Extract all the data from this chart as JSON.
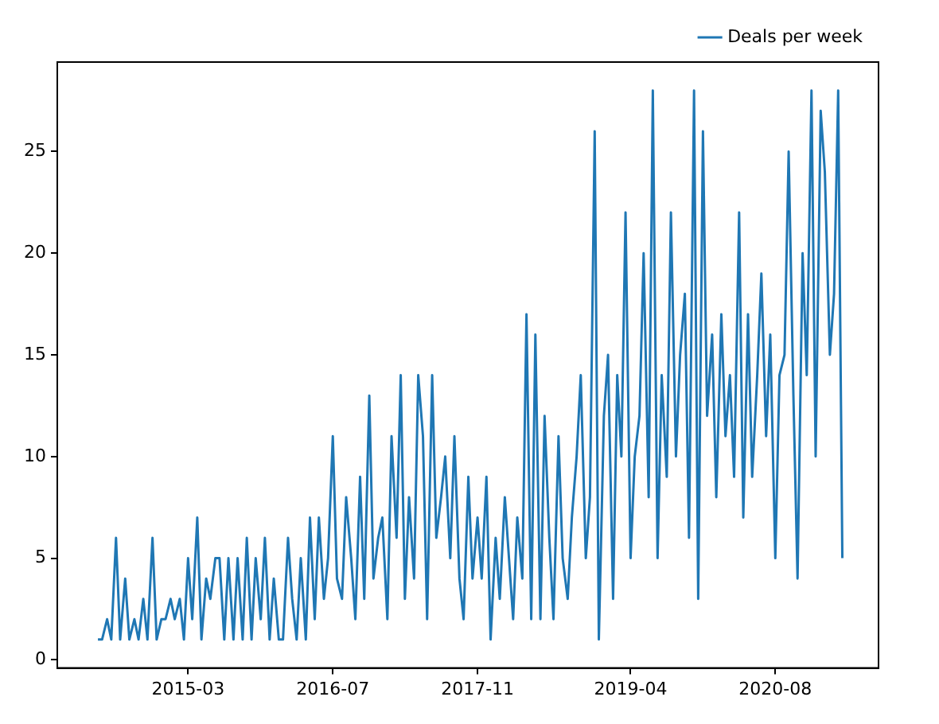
{
  "chart_data": {
    "type": "line",
    "x": [
      "2014-05-01",
      "2014-05-15",
      "2014-06-01",
      "2014-06-15",
      "2014-07-01",
      "2014-07-15",
      "2014-08-01",
      "2014-08-15",
      "2014-09-01",
      "2014-09-15",
      "2014-10-01",
      "2014-10-15",
      "2014-11-01",
      "2014-11-15",
      "2014-12-01",
      "2014-12-15",
      "2015-01-01",
      "2015-01-15",
      "2015-02-01",
      "2015-02-15",
      "2015-03-01",
      "2015-03-15",
      "2015-04-01",
      "2015-04-15",
      "2015-05-01",
      "2015-05-15",
      "2015-06-01",
      "2015-06-15",
      "2015-07-01",
      "2015-07-15",
      "2015-08-01",
      "2015-08-15",
      "2015-09-01",
      "2015-09-15",
      "2015-10-01",
      "2015-10-15",
      "2015-11-01",
      "2015-11-15",
      "2015-12-01",
      "2015-12-15",
      "2016-01-01",
      "2016-01-15",
      "2016-02-01",
      "2016-02-15",
      "2016-03-01",
      "2016-03-15",
      "2016-04-01",
      "2016-04-15",
      "2016-05-01",
      "2016-05-15",
      "2016-06-01",
      "2016-06-15",
      "2016-07-01",
      "2016-07-15",
      "2016-08-01",
      "2016-08-15",
      "2016-09-01",
      "2016-09-15",
      "2016-10-01",
      "2016-10-15",
      "2016-11-01",
      "2016-11-15",
      "2016-12-01",
      "2016-12-15",
      "2017-01-01",
      "2017-01-15",
      "2017-02-01",
      "2017-02-15",
      "2017-03-01",
      "2017-03-15",
      "2017-04-01",
      "2017-04-15",
      "2017-05-01",
      "2017-05-15",
      "2017-06-01",
      "2017-06-15",
      "2017-07-01",
      "2017-07-15",
      "2017-08-01",
      "2017-08-15",
      "2017-09-01",
      "2017-09-15",
      "2017-10-01",
      "2017-10-15",
      "2017-11-01",
      "2017-11-15",
      "2017-12-01",
      "2017-12-15",
      "2018-01-01",
      "2018-01-15",
      "2018-02-01",
      "2018-02-15",
      "2018-03-01",
      "2018-03-15",
      "2018-04-01",
      "2018-04-15",
      "2018-05-01",
      "2018-05-15",
      "2018-06-01",
      "2018-06-15",
      "2018-07-01",
      "2018-07-15",
      "2018-08-01",
      "2018-08-15",
      "2018-09-01",
      "2018-09-15",
      "2018-10-01",
      "2018-10-15",
      "2018-11-01",
      "2018-11-15",
      "2018-12-01",
      "2018-12-15",
      "2019-01-01",
      "2019-01-15",
      "2019-02-01",
      "2019-02-15",
      "2019-03-01",
      "2019-03-15",
      "2019-04-01",
      "2019-04-15",
      "2019-05-01",
      "2019-05-15",
      "2019-06-01",
      "2019-06-15",
      "2019-07-01",
      "2019-07-15",
      "2019-08-01",
      "2019-08-15",
      "2019-09-01",
      "2019-09-15",
      "2019-10-01",
      "2019-10-15",
      "2019-11-01",
      "2019-11-15",
      "2019-12-01",
      "2019-12-15",
      "2020-01-01",
      "2020-01-15",
      "2020-02-01",
      "2020-02-15",
      "2020-03-01",
      "2020-03-15",
      "2020-04-01",
      "2020-04-15",
      "2020-05-01",
      "2020-05-15",
      "2020-06-01",
      "2020-06-15",
      "2020-07-01",
      "2020-07-15",
      "2020-08-01",
      "2020-08-15",
      "2020-09-01",
      "2020-09-15",
      "2020-10-01",
      "2020-10-15",
      "2020-11-01",
      "2020-11-15",
      "2020-12-01",
      "2020-12-15",
      "2021-01-01",
      "2021-01-15",
      "2021-02-01",
      "2021-02-15",
      "2021-03-01",
      "2021-03-15"
    ],
    "series": [
      {
        "name": "Deals per week",
        "color": "#1f77b4",
        "values": [
          1,
          1,
          2,
          1,
          6,
          1,
          4,
          1,
          2,
          1,
          3,
          1,
          6,
          1,
          2,
          2,
          3,
          2,
          3,
          1,
          5,
          2,
          7,
          1,
          4,
          3,
          5,
          5,
          1,
          5,
          1,
          5,
          1,
          6,
          1,
          5,
          2,
          6,
          1,
          4,
          1,
          1,
          6,
          3,
          1,
          5,
          1,
          7,
          2,
          7,
          3,
          5,
          11,
          4,
          3,
          8,
          5,
          2,
          9,
          3,
          13,
          4,
          6,
          7,
          2,
          11,
          6,
          14,
          3,
          8,
          4,
          14,
          11,
          2,
          14,
          6,
          8,
          10,
          5,
          11,
          4,
          2,
          9,
          4,
          7,
          4,
          9,
          1,
          6,
          3,
          8,
          5,
          2,
          7,
          4,
          17,
          2,
          16,
          2,
          12,
          6,
          2,
          11,
          5,
          3,
          7,
          10,
          14,
          5,
          8,
          26,
          1,
          12,
          15,
          3,
          14,
          10,
          22,
          5,
          10,
          12,
          20,
          8,
          28,
          5,
          14,
          9,
          22,
          10,
          15,
          18,
          6,
          28,
          3,
          26,
          12,
          16,
          8,
          17,
          11,
          14,
          9,
          22,
          7,
          17,
          9,
          14,
          19,
          11,
          16,
          5,
          14,
          15,
          25,
          13,
          4,
          20,
          14,
          28,
          10,
          27,
          24,
          15,
          18,
          28,
          5
        ]
      }
    ],
    "xlim": [
      "2013-12-15",
      "2021-07-15"
    ],
    "xticks": [
      "2015-03",
      "2016-07",
      "2017-11",
      "2019-04",
      "2020-08"
    ],
    "ylim": [
      -0.4,
      29.4
    ],
    "yticks": [
      0,
      5,
      10,
      15,
      20,
      25
    ],
    "legend": "top right",
    "marker": "none",
    "line_style": "solid"
  }
}
